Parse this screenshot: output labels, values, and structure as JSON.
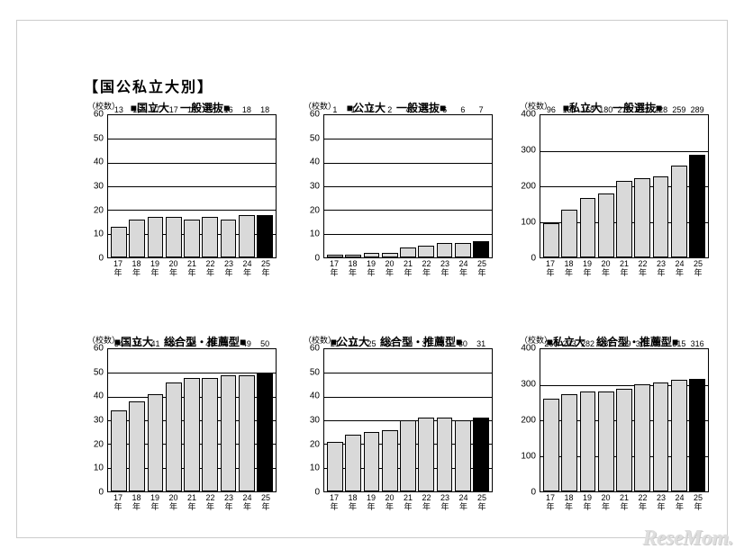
{
  "main_title": "【国公私立大別】",
  "axis_unit_label": "（校数）",
  "watermark": "ReseMom.",
  "colors": {
    "bar_fill": "#d9d9d9",
    "bar_highlight": "#000000",
    "border": "#000000",
    "background": "#ffffff"
  },
  "x_categories": [
    "17",
    "18",
    "19",
    "20",
    "21",
    "22",
    "23",
    "24",
    "25"
  ],
  "x_suffix": "年",
  "highlight_index": 8,
  "charts": [
    {
      "id": "c0",
      "title": "■国立大　一般選抜■",
      "ymax": 60,
      "ystep": 10,
      "values": [
        13,
        16,
        17,
        17,
        16,
        17,
        16,
        18,
        18
      ]
    },
    {
      "id": "c1",
      "title": "■公立大　一般選抜■",
      "ymax": 60,
      "ystep": 10,
      "values": [
        1,
        1,
        2,
        2,
        4,
        5,
        6,
        6,
        7
      ]
    },
    {
      "id": "c2",
      "title": "■私立大　一般選抜■",
      "ymax": 400,
      "ystep": 100,
      "values": [
        96,
        135,
        168,
        180,
        215,
        222,
        228,
        259,
        289
      ]
    },
    {
      "id": "c3",
      "title": "■国立大　総合型・推薦型■",
      "ymax": 60,
      "ystep": 10,
      "values": [
        34,
        38,
        41,
        46,
        48,
        48,
        49,
        49,
        50
      ]
    },
    {
      "id": "c4",
      "title": "■公立大　総合型・推薦型■",
      "ymax": 60,
      "ystep": 10,
      "values": [
        21,
        24,
        25,
        26,
        30,
        31,
        31,
        30,
        31
      ]
    },
    {
      "id": "c5",
      "title": "■私立大　総合型・推薦型■",
      "ymax": 400,
      "ystep": 100,
      "values": [
        260,
        273,
        282,
        282,
        289,
        301,
        306,
        315,
        316
      ]
    }
  ]
}
